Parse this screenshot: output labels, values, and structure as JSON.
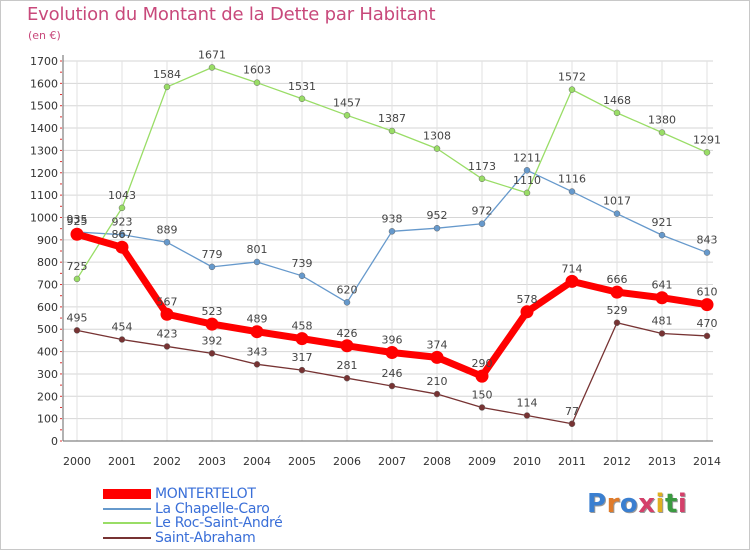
{
  "title": "Evolution du Montant de la Dette par Habitant",
  "subtitle": "(en €)",
  "logo_text": "Proxiti",
  "chart_data": {
    "type": "line",
    "title": "Evolution du Montant de la Dette par Habitant",
    "ylabel": "(en €)",
    "x": [
      "2000",
      "2001",
      "2002",
      "2003",
      "2004",
      "2005",
      "2006",
      "2007",
      "2008",
      "2009",
      "2010",
      "2011",
      "2012",
      "2013",
      "2014"
    ],
    "ylim": [
      0,
      1700
    ],
    "yticks": [
      0,
      100,
      200,
      300,
      400,
      500,
      600,
      700,
      800,
      900,
      1000,
      1100,
      1200,
      1300,
      1400,
      1500,
      1600,
      1700
    ],
    "grid": true,
    "legend_position": "bottom-left",
    "series": [
      {
        "name": "MONTERTELOT",
        "color": "#ff0000",
        "values": [
          925,
          867,
          567,
          523,
          489,
          458,
          426,
          396,
          374,
          290,
          578,
          714,
          666,
          641,
          610
        ]
      },
      {
        "name": "La Chapelle-Caro",
        "color": "#6699cc",
        "values": [
          935,
          923,
          889,
          779,
          801,
          739,
          620,
          938,
          952,
          972,
          1211,
          1116,
          1017,
          921,
          843
        ]
      },
      {
        "name": "Le Roc-Saint-André",
        "color": "#99dd66",
        "values": [
          725,
          1043,
          1584,
          1671,
          1603,
          1531,
          1457,
          1387,
          1308,
          1173,
          1110,
          1572,
          1468,
          1380,
          1291
        ]
      },
      {
        "name": "Saint-Abraham",
        "color": "#773333",
        "values": [
          495,
          454,
          423,
          392,
          343,
          317,
          281,
          246,
          210,
          150,
          114,
          77,
          529,
          481,
          470
        ]
      }
    ]
  }
}
